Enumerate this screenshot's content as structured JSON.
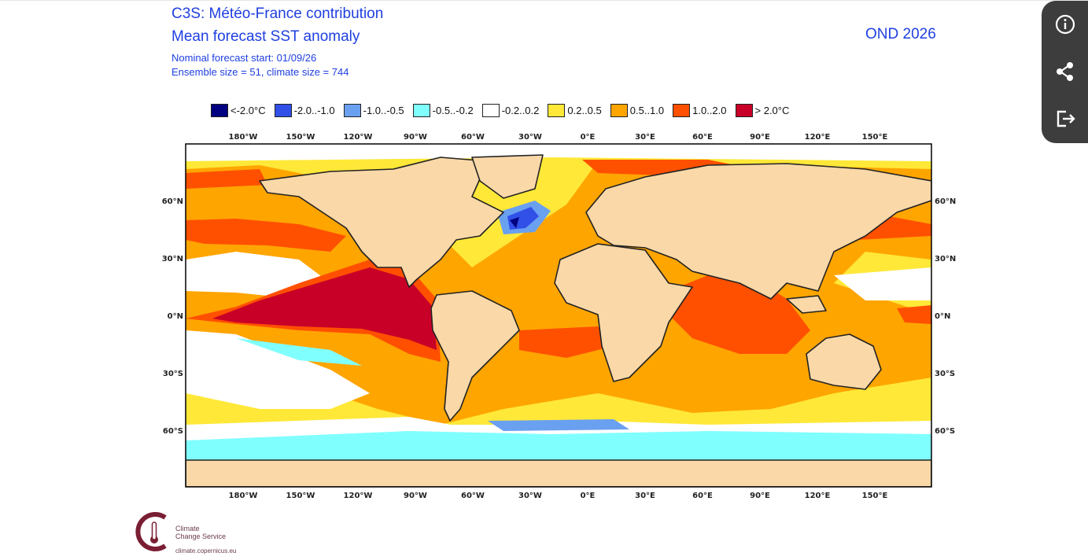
{
  "header": {
    "title_line1": "C3S: Météo-France contribution",
    "title_line2": "Mean forecast SST anomaly",
    "forecast_start": "Nominal forecast start: 01/09/26",
    "ensemble_info": "Ensemble size = 51, climate size = 744",
    "period": "OND 2026"
  },
  "legend": [
    {
      "label": "<-2.0°C",
      "color": "#000080"
    },
    {
      "label": "-2.0..-1.0",
      "color": "#3050e8"
    },
    {
      "label": "-1.0..-0.5",
      "color": "#6aa0f0"
    },
    {
      "label": "-0.5..-0.2",
      "color": "#80ffff"
    },
    {
      "label": "-0.2..0.2",
      "color": "#ffffff"
    },
    {
      "label": "0.2..0.5",
      "color": "#ffe838"
    },
    {
      "label": "0.5..1.0",
      "color": "#ffa500"
    },
    {
      "label": "1.0..2.0",
      "color": "#ff5000"
    },
    {
      "label": "> 2.0°C",
      "color": "#c80028"
    }
  ],
  "axes": {
    "lon_labels": [
      "180°W",
      "150°W",
      "120°W",
      "90°W",
      "60°W",
      "30°W",
      "0°E",
      "30°E",
      "60°E",
      "90°E",
      "120°E",
      "150°E"
    ],
    "lat_labels": [
      "60°N",
      "30°N",
      "0°N",
      "30°S",
      "60°S"
    ]
  },
  "colors": {
    "land": "#fad8a8",
    "ocean_neutral": "#ffffff",
    "accent_text": "#1f3fe0"
  },
  "logo": {
    "line1": "Climate",
    "line2": "Change Service",
    "url": "climate.copernicus.eu"
  },
  "side_panel": {
    "icons": [
      "info-icon",
      "share-icon",
      "export-icon"
    ]
  }
}
